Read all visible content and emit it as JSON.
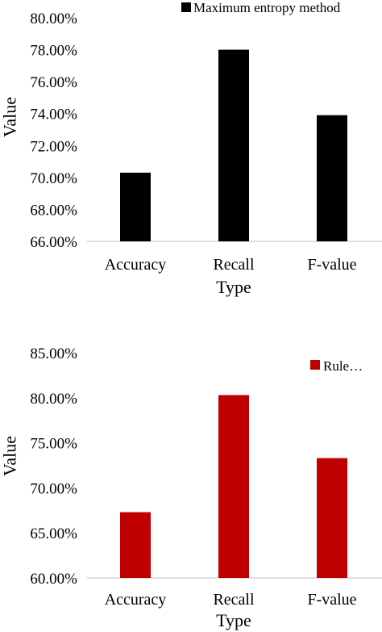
{
  "chart_data": [
    {
      "type": "bar",
      "categories": [
        "Accuracy",
        "Recall",
        "F-value"
      ],
      "series": [
        {
          "name": "Maximum entropy method",
          "values": [
            70.3,
            78.0,
            73.9
          ]
        }
      ],
      "ylim": [
        66,
        80
      ],
      "yticks": [
        80,
        78,
        76,
        74,
        72,
        70,
        68,
        66
      ],
      "tick_labels": [
        "80.00%",
        "78.00%",
        "76.00%",
        "74.00%",
        "72.00%",
        "70.00%",
        "68.00%",
        "66.00%"
      ],
      "xlabel": "Type",
      "ylabel": "Value",
      "legend_position": "top-right",
      "grid": false,
      "color": "#000000"
    },
    {
      "type": "bar",
      "categories": [
        "Accuracy",
        "Recall",
        "F-value"
      ],
      "series": [
        {
          "name": "Rule…",
          "values": [
            67.3,
            80.3,
            73.3
          ]
        }
      ],
      "ylim": [
        60,
        85
      ],
      "yticks": [
        85,
        80,
        75,
        70,
        65,
        60
      ],
      "tick_labels": [
        "85.00%",
        "80.00%",
        "75.00%",
        "70.00%",
        "65.00%",
        "60.00%"
      ],
      "xlabel": "Type",
      "ylabel": "Value",
      "legend_position": "top-right",
      "grid": false,
      "color": "#c00000"
    }
  ]
}
